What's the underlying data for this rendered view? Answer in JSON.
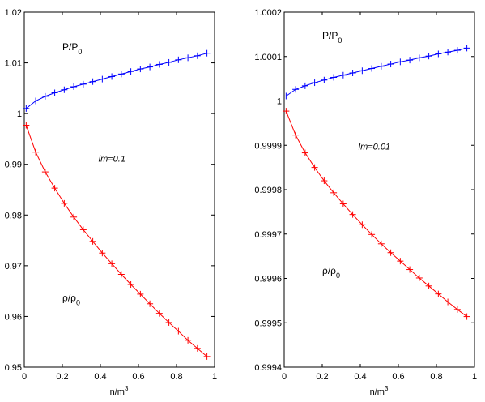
{
  "chart_data": [
    {
      "type": "line",
      "title": "",
      "xlabel": "n/m",
      "xlabel_sup": "3",
      "ylabel": "",
      "xlim": [
        0,
        1
      ],
      "ylim": [
        0.95,
        1.02
      ],
      "x_ticks": [
        "0",
        "0.2",
        "0.4",
        "0.6",
        "0.8",
        "1"
      ],
      "y_ticks": [
        "0.95",
        "0.96",
        "0.97",
        "0.98",
        "0.99",
        "1",
        "1.01",
        "1.02"
      ],
      "x_tick_values": [
        0,
        0.2,
        0.4,
        0.6,
        0.8,
        1
      ],
      "y_tick_values": [
        0.95,
        0.96,
        0.97,
        0.98,
        0.99,
        1.0,
        1.01,
        1.02
      ],
      "grid": false,
      "annotation": "lm=0.1",
      "annotation_pos": [
        0.39,
        0.9905
      ],
      "series": [
        {
          "name": "P/P",
          "name_sub": "0",
          "label_pos": [
            0.2,
            1.0125
          ],
          "color": "#0000ff",
          "marker": "+",
          "x": [
            0.01,
            0.06,
            0.11,
            0.16,
            0.21,
            0.26,
            0.31,
            0.36,
            0.41,
            0.46,
            0.51,
            0.56,
            0.61,
            0.66,
            0.71,
            0.76,
            0.81,
            0.86,
            0.91,
            0.96
          ],
          "y": [
            1.001,
            1.0025,
            1.0034,
            1.0041,
            1.0047,
            1.0053,
            1.0058,
            1.0063,
            1.0068,
            1.0073,
            1.0078,
            1.0083,
            1.0088,
            1.0092,
            1.0097,
            1.0101,
            1.0106,
            1.011,
            1.0114,
            1.0119
          ]
        },
        {
          "name": "ρ/ρ",
          "name_sub": "0",
          "label_pos": [
            0.2,
            0.963
          ],
          "color": "#ff0000",
          "marker": "+",
          "x": [
            0.01,
            0.06,
            0.11,
            0.16,
            0.21,
            0.26,
            0.31,
            0.36,
            0.41,
            0.46,
            0.51,
            0.56,
            0.61,
            0.66,
            0.71,
            0.76,
            0.81,
            0.86,
            0.91,
            0.96
          ],
          "y": [
            0.9977,
            0.9924,
            0.9885,
            0.9853,
            0.9823,
            0.9796,
            0.9771,
            0.9748,
            0.9725,
            0.9704,
            0.9683,
            0.9663,
            0.9644,
            0.9625,
            0.9606,
            0.9588,
            0.9571,
            0.9553,
            0.9537,
            0.9521
          ]
        }
      ]
    },
    {
      "type": "line",
      "title": "",
      "xlabel": "n/m",
      "xlabel_sup": "3",
      "ylabel": "",
      "xlim": [
        0,
        1
      ],
      "ylim": [
        0.9994,
        1.0002
      ],
      "x_ticks": [
        "0",
        "0.2",
        "0.4",
        "0.6",
        "0.8",
        "1"
      ],
      "y_ticks": [
        "0.9994",
        "0.9995",
        "0.9996",
        "0.9997",
        "0.9998",
        "0.9999",
        "1",
        "1.0001",
        "1.0002"
      ],
      "x_tick_values": [
        0,
        0.2,
        0.4,
        0.6,
        0.8,
        1
      ],
      "y_tick_values": [
        0.9994,
        0.9995,
        0.9996,
        0.9997,
        0.9998,
        0.9999,
        1.0,
        1.0001,
        1.0002
      ],
      "grid": false,
      "annotation": "lm=0.01",
      "annotation_pos": [
        0.39,
        0.99989
      ],
      "series": [
        {
          "name": "P/P",
          "name_sub": "0",
          "label_pos": [
            0.2,
            1.00014
          ],
          "color": "#0000ff",
          "marker": "+",
          "x": [
            0.01,
            0.06,
            0.11,
            0.16,
            0.21,
            0.26,
            0.31,
            0.36,
            0.41,
            0.46,
            0.51,
            0.56,
            0.61,
            0.66,
            0.71,
            0.76,
            0.81,
            0.86,
            0.91,
            0.96
          ],
          "y": [
            1.000011,
            1.000026,
            1.000034,
            1.000041,
            1.000047,
            1.000053,
            1.000058,
            1.000063,
            1.000068,
            1.000073,
            1.000078,
            1.000083,
            1.000088,
            1.000092,
            1.000097,
            1.000101,
            1.000106,
            1.00011,
            1.000114,
            1.000119
          ]
        },
        {
          "name": "ρ/ρ",
          "name_sub": "0",
          "label_pos": [
            0.2,
            0.99961
          ],
          "color": "#ff0000",
          "marker": "+",
          "x": [
            0.01,
            0.06,
            0.11,
            0.16,
            0.21,
            0.26,
            0.31,
            0.36,
            0.41,
            0.46,
            0.51,
            0.56,
            0.61,
            0.66,
            0.71,
            0.76,
            0.81,
            0.86,
            0.91,
            0.96
          ],
          "y": [
            0.999977,
            0.999923,
            0.999883,
            0.99985,
            0.99982,
            0.999793,
            0.999768,
            0.999744,
            0.999721,
            0.999699,
            0.999678,
            0.999658,
            0.999639,
            0.99962,
            0.999601,
            0.999583,
            0.999565,
            0.999547,
            0.99953,
            0.999514
          ]
        }
      ]
    }
  ]
}
